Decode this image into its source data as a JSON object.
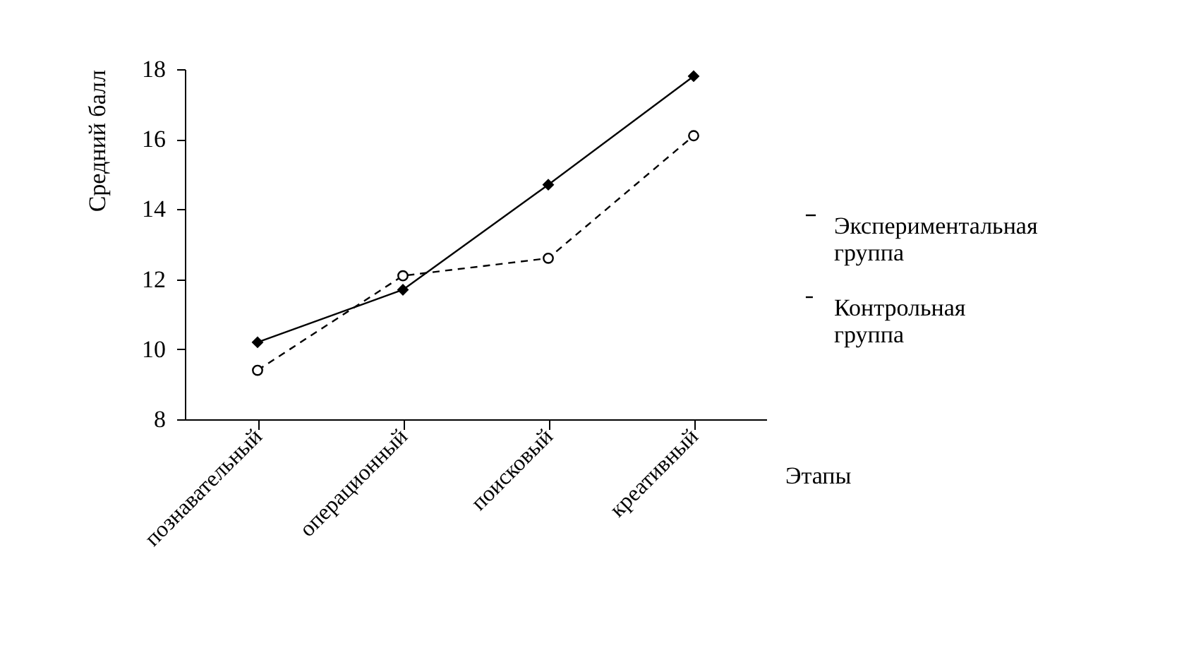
{
  "chart_data": {
    "type": "line",
    "xlabel": "Этапы",
    "ylabel": "Средний балл",
    "categories": [
      "познавательный",
      "операционный",
      "поисковый",
      "креативный"
    ],
    "series": [
      {
        "name": "Экспериментальная группа",
        "color": "#000000",
        "marker": "diamond",
        "line_style": "solid",
        "values": [
          10.2,
          11.7,
          14.7,
          17.8
        ]
      },
      {
        "name": "Контрольная группа",
        "color": "#000000",
        "marker": "circle",
        "line_style": "dashed",
        "values": [
          9.4,
          12.1,
          12.6,
          16.1
        ]
      }
    ],
    "ylim": [
      8,
      18
    ],
    "yticks": [
      8,
      10,
      12,
      14,
      16,
      18
    ],
    "grid": false,
    "legend": "right"
  }
}
